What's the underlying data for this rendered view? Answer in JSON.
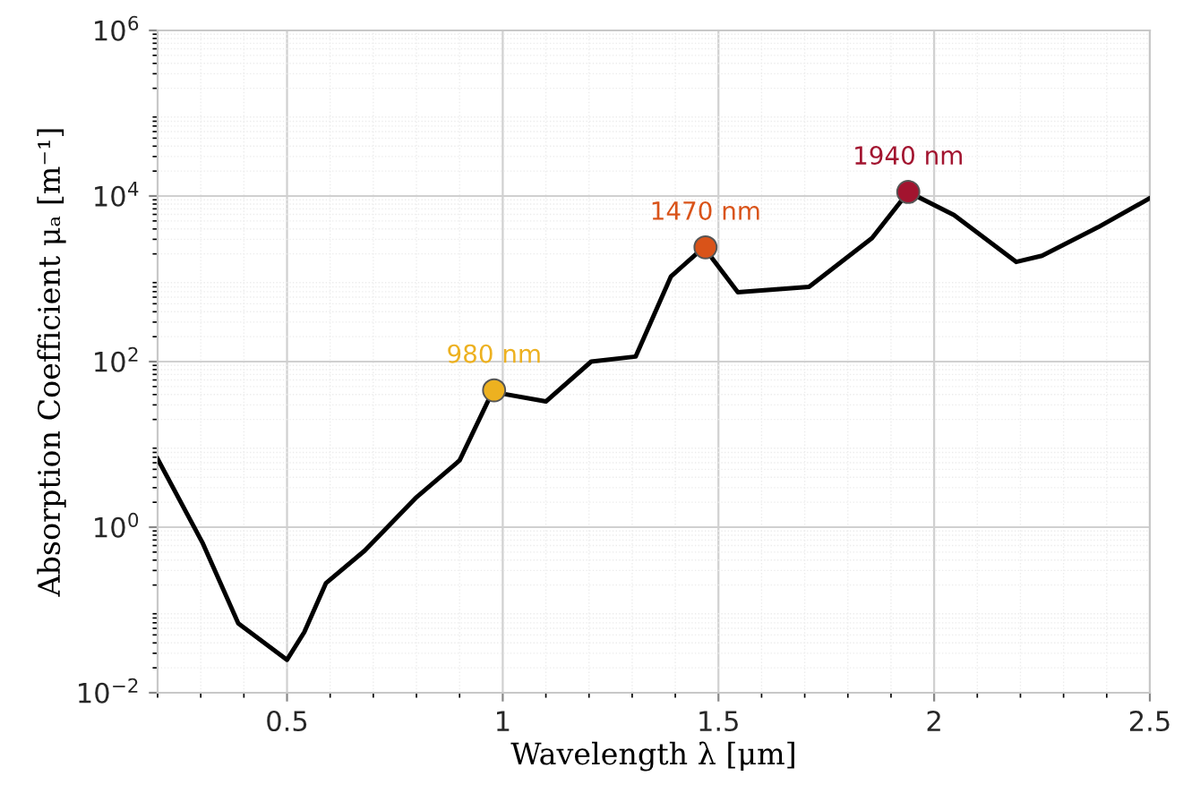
{
  "chart_data": {
    "type": "line",
    "xlabel": "Wavelength λ [μm]",
    "ylabel": "Absorption Coefficient μₐ [m⁻¹]",
    "log": "y",
    "grid": true,
    "xlim": [
      0.2,
      2.5
    ],
    "xticks": [
      0.5,
      1,
      1.5,
      2,
      2.5
    ],
    "ylim": [
      0.01,
      1000000
    ],
    "yticks": [
      {
        "value": 0.01,
        "label": "10$^{−2}$"
      },
      {
        "value": 1,
        "label": "10$^{0}$"
      },
      {
        "value": 100,
        "label": "10$^{2}$"
      },
      {
        "value": 10000,
        "label": "10$^{4}$"
      },
      {
        "value": 1000000,
        "label": "10$^{6}$"
      }
    ],
    "series": [
      {
        "color": "#000000",
        "marker": "none",
        "line_style": "solid",
        "x": [
          0.2,
          0.304,
          0.387,
          0.5,
          0.54,
          0.59,
          0.68,
          0.8,
          0.9,
          0.976,
          1.1,
          1.205,
          1.308,
          1.39,
          1.466,
          1.545,
          1.71,
          1.856,
          1.94,
          2.046,
          2.19,
          2.25,
          2.38,
          2.5
        ],
        "values": [
          6.7,
          0.65,
          0.069,
          0.025,
          0.054,
          0.21,
          0.52,
          2.3,
          6.4,
          43,
          33,
          100,
          115,
          1070,
          2400,
          690,
          800,
          3100,
          11200,
          5900,
          1600,
          1900,
          4200,
          9400
        ]
      },
      {
        "type": "scatter",
        "marker": "circle",
        "x": [
          0.98,
          1.47,
          1.94
        ],
        "values": [
          45,
          2400,
          11200
        ],
        "colors": [
          "#edb120",
          "#d95319",
          "#a2142f"
        ]
      }
    ],
    "annotations": [
      {
        "text": "980 nm",
        "x": 0.98,
        "y": 45
      },
      {
        "text": "1470 nm",
        "x": 1.47,
        "y": 2400
      },
      {
        "text": "1940 nm",
        "x": 1.94,
        "y": 11200
      }
    ]
  }
}
